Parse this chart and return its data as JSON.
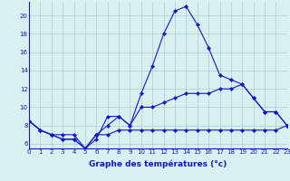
{
  "hours": [
    0,
    1,
    2,
    3,
    4,
    5,
    6,
    7,
    8,
    9,
    10,
    11,
    12,
    13,
    14,
    15,
    16,
    17,
    18,
    19,
    20,
    21,
    22,
    23
  ],
  "line1_y": [
    8.5,
    7.5,
    7.0,
    6.5,
    6.5,
    5.5,
    6.5,
    9.0,
    9.0,
    8.0,
    11.5,
    14.5,
    18.0,
    20.5,
    21.0,
    19.0,
    16.5,
    13.5,
    13.0,
    12.5,
    11.0,
    9.5,
    9.5,
    8.0
  ],
  "line2_y": [
    8.5,
    7.5,
    7.0,
    6.5,
    6.5,
    5.5,
    7.0,
    8.0,
    9.0,
    8.0,
    10.0,
    10.0,
    10.5,
    11.0,
    11.5,
    11.5,
    11.5,
    12.0,
    12.0,
    12.5,
    11.0,
    9.5,
    9.5,
    8.0
  ],
  "line3_y": [
    8.5,
    7.5,
    7.0,
    7.0,
    7.0,
    5.5,
    7.0,
    7.0,
    7.5,
    7.5,
    7.5,
    7.5,
    7.5,
    7.5,
    7.5,
    7.5,
    7.5,
    7.5,
    7.5,
    7.5,
    7.5,
    7.5,
    7.5,
    8.0
  ],
  "title": "Graphe des températures (°c)",
  "line_color": "#1515cc",
  "bg_color": "#d8f0f0",
  "grid_color": "#aacccc",
  "xlim": [
    0,
    23
  ],
  "ylim": [
    5.5,
    21.5
  ],
  "yticks": [
    6,
    8,
    10,
    12,
    14,
    16,
    18,
    20
  ],
  "xticks": [
    0,
    1,
    2,
    3,
    4,
    5,
    6,
    7,
    8,
    9,
    10,
    11,
    12,
    13,
    14,
    15,
    16,
    17,
    18,
    19,
    20,
    21,
    22,
    23
  ],
  "tick_fontsize": 5.0,
  "xlabel_fontsize": 6.5
}
